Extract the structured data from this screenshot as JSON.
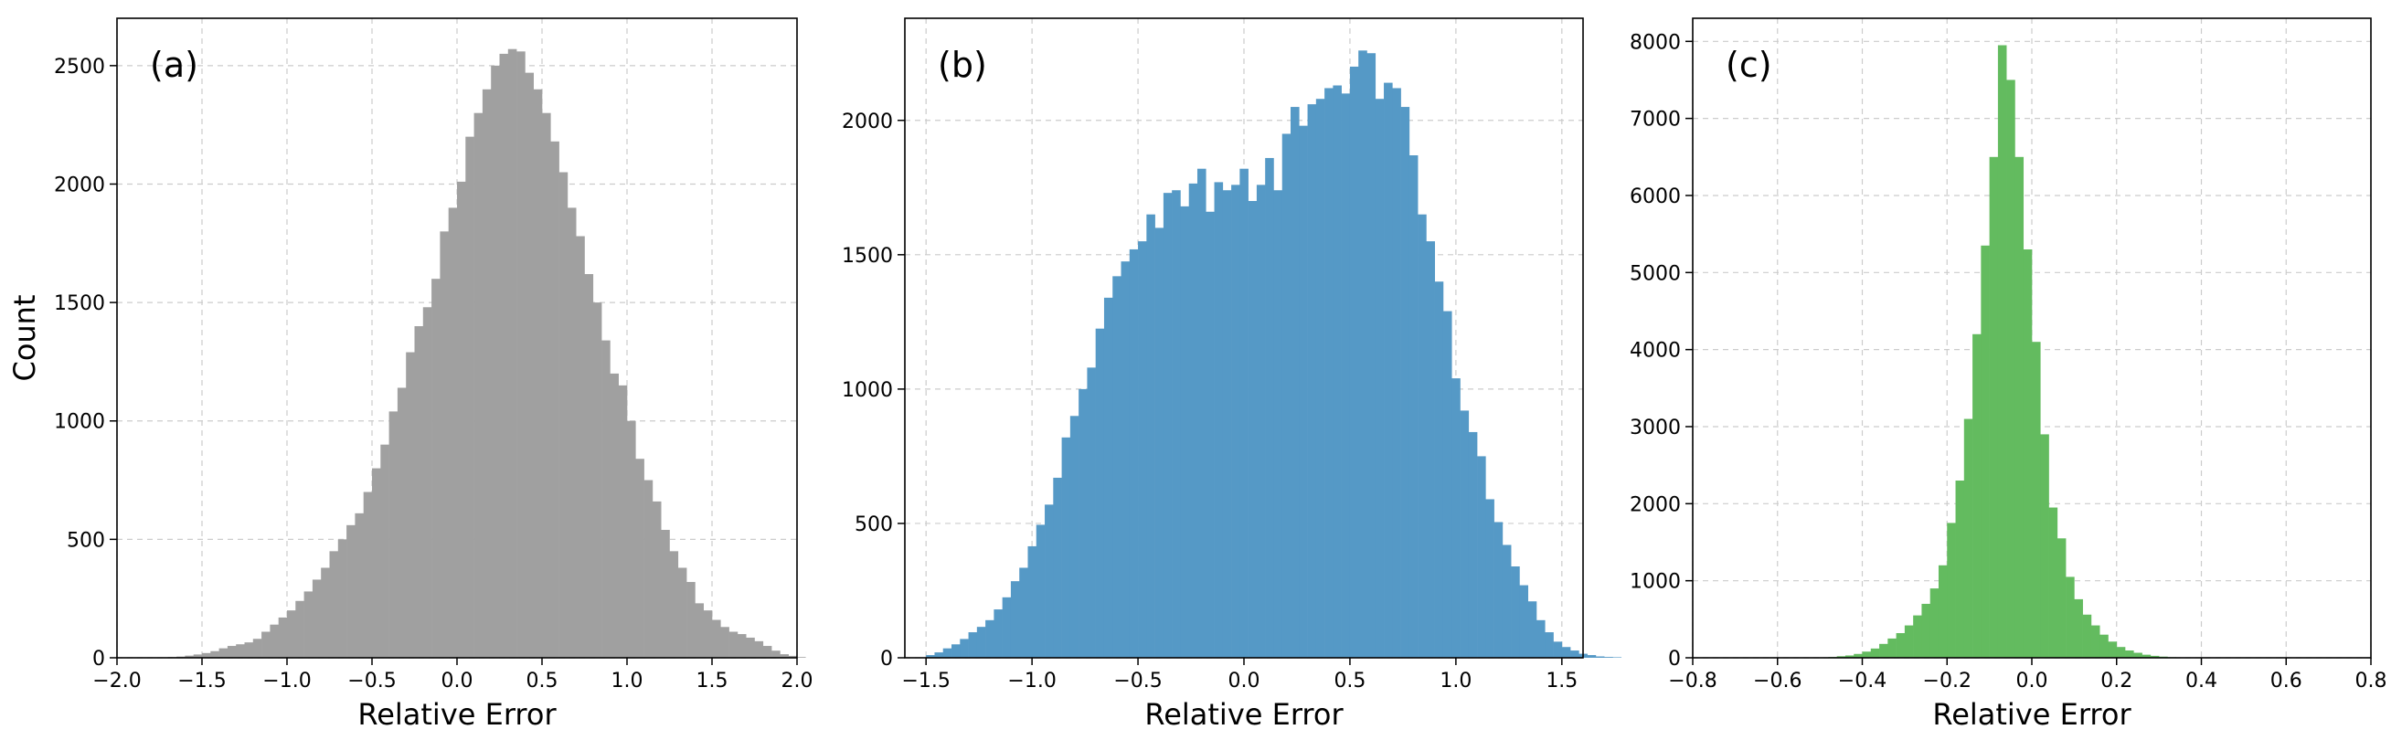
{
  "chart_data": [
    {
      "type": "bar",
      "panel_label": "(a)",
      "xlabel": "Relative Error",
      "ylabel": "Count",
      "xlim": [
        -2.0,
        2.0
      ],
      "ylim": [
        0,
        2700
      ],
      "xticks": [
        -2.0,
        -1.5,
        -1.0,
        -0.5,
        0.0,
        0.5,
        1.0,
        1.5,
        2.0
      ],
      "xtick_labels": [
        "−2.0",
        "−1.5",
        "−1.0",
        "−0.5",
        "0.0",
        "0.5",
        "1.0",
        "1.5",
        "2.0"
      ],
      "yticks": [
        0,
        500,
        1000,
        1500,
        2000,
        2500
      ],
      "ytick_labels": [
        "0",
        "500",
        "1000",
        "1500",
        "2000",
        "2500"
      ],
      "grid": true,
      "color": "#a0a0a0",
      "bin_start": -1.75,
      "bin_width": 0.05,
      "values": [
        2,
        3,
        5,
        9,
        14,
        20,
        28,
        40,
        50,
        57,
        65,
        80,
        110,
        140,
        170,
        200,
        240,
        280,
        330,
        380,
        450,
        500,
        560,
        610,
        700,
        800,
        900,
        1040,
        1140,
        1290,
        1400,
        1480,
        1600,
        1800,
        1900,
        2010,
        2200,
        2300,
        2400,
        2500,
        2550,
        2570,
        2560,
        2470,
        2400,
        2300,
        2180,
        2050,
        1900,
        1780,
        1620,
        1500,
        1340,
        1200,
        1150,
        1000,
        840,
        750,
        660,
        540,
        450,
        380,
        320,
        230,
        200,
        160,
        130,
        110,
        100,
        85,
        70,
        50,
        30,
        15,
        8,
        3
      ]
    },
    {
      "type": "bar",
      "panel_label": "(b)",
      "xlabel": "Relative Error",
      "xlim": [
        -1.6,
        1.6
      ],
      "ylim": [
        0,
        2380
      ],
      "xticks": [
        -1.5,
        -1.0,
        -0.5,
        0.0,
        0.5,
        1.0,
        1.5
      ],
      "xtick_labels": [
        "−1.5",
        "−1.0",
        "−0.5",
        "0.0",
        "0.5",
        "1.0",
        "1.5"
      ],
      "yticks": [
        0,
        500,
        1000,
        1500,
        2000
      ],
      "ytick_labels": [
        "0",
        "500",
        "1000",
        "1500",
        "2000"
      ],
      "grid": true,
      "color": "#5599c6",
      "bin_start": -1.5,
      "bin_width": 0.04,
      "values": [
        10,
        20,
        35,
        50,
        70,
        95,
        115,
        140,
        180,
        225,
        285,
        335,
        415,
        495,
        570,
        670,
        820,
        900,
        1000,
        1080,
        1225,
        1340,
        1420,
        1475,
        1520,
        1550,
        1650,
        1600,
        1730,
        1740,
        1680,
        1765,
        1820,
        1660,
        1770,
        1740,
        1760,
        1820,
        1700,
        1760,
        1860,
        1740,
        1950,
        2050,
        1980,
        2060,
        2080,
        2120,
        2130,
        2100,
        2200,
        2260,
        2250,
        2080,
        2140,
        2120,
        2050,
        1870,
        1650,
        1550,
        1400,
        1290,
        1040,
        920,
        840,
        750,
        590,
        505,
        420,
        340,
        270,
        210,
        140,
        95,
        60,
        40,
        27,
        15,
        10,
        5,
        3,
        2
      ]
    },
    {
      "type": "bar",
      "panel_label": "(c)",
      "xlabel": "Relative Error",
      "xlim": [
        -0.8,
        0.8
      ],
      "ylim": [
        0,
        8300
      ],
      "xticks": [
        -0.8,
        -0.6,
        -0.4,
        -0.2,
        0.0,
        0.2,
        0.4,
        0.6,
        0.8
      ],
      "xtick_labels": [
        "−0.8",
        "−0.6",
        "−0.4",
        "−0.2",
        "0.0",
        "0.2",
        "0.4",
        "0.6",
        "0.8"
      ],
      "yticks": [
        0,
        1000,
        2000,
        3000,
        4000,
        5000,
        6000,
        7000,
        8000
      ],
      "ytick_labels": [
        "0",
        "1000",
        "2000",
        "3000",
        "4000",
        "5000",
        "6000",
        "7000",
        "8000"
      ],
      "grid": true,
      "color": "#63bb5f",
      "bin_start": -0.5,
      "bin_width": 0.02,
      "values": [
        5,
        10,
        20,
        30,
        50,
        80,
        120,
        180,
        250,
        320,
        420,
        550,
        700,
        900,
        1200,
        1750,
        2300,
        3100,
        4200,
        5350,
        6500,
        7950,
        7500,
        6500,
        5300,
        4100,
        2900,
        1950,
        1550,
        1050,
        760,
        560,
        420,
        300,
        210,
        140,
        95,
        65,
        40,
        25,
        15,
        8,
        5,
        3,
        2
      ]
    }
  ]
}
